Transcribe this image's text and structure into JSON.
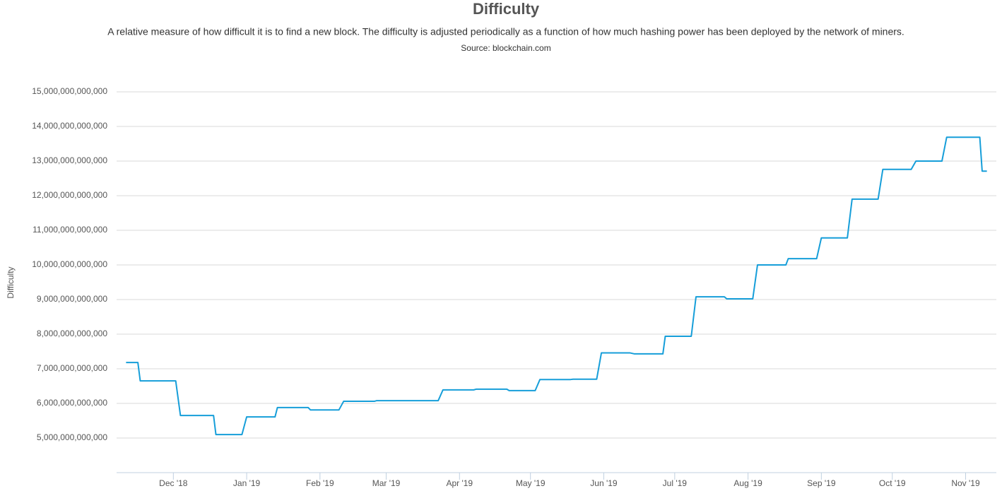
{
  "chart_data": {
    "type": "line",
    "title": "Difficulty",
    "subtitle": "A relative measure of how difficult it is to find a new block. The difficulty is adjusted periodically as a function of how much hashing power has been deployed by the network of miners.",
    "source": "Source: blockchain.com",
    "y_label": "Difficulty",
    "grid": true,
    "xlim": [
      "2018-11-07",
      "2019-11-14"
    ],
    "xticks": [
      {
        "value": "2018-12-01",
        "label": "Dec '18"
      },
      {
        "value": "2019-01-01",
        "label": "Jan '19"
      },
      {
        "value": "2019-02-01",
        "label": "Feb '19"
      },
      {
        "value": "2019-03-01",
        "label": "Mar '19"
      },
      {
        "value": "2019-04-01",
        "label": "Apr '19"
      },
      {
        "value": "2019-05-01",
        "label": "May '19"
      },
      {
        "value": "2019-06-01",
        "label": "Jun '19"
      },
      {
        "value": "2019-07-01",
        "label": "Jul '19"
      },
      {
        "value": "2019-08-01",
        "label": "Aug '19"
      },
      {
        "value": "2019-09-01",
        "label": "Sep '19"
      },
      {
        "value": "2019-10-01",
        "label": "Oct '19"
      },
      {
        "value": "2019-11-01",
        "label": "Nov '19"
      }
    ],
    "ylim": [
      4000000000000,
      15000000000000
    ],
    "yticks": [
      {
        "value": 5000000000000,
        "label": "5,000,000,000,000"
      },
      {
        "value": 6000000000000,
        "label": "6,000,000,000,000"
      },
      {
        "value": 7000000000000,
        "label": "7,000,000,000,000"
      },
      {
        "value": 8000000000000,
        "label": "8,000,000,000,000"
      },
      {
        "value": 9000000000000,
        "label": "9,000,000,000,000"
      },
      {
        "value": 10000000000000,
        "label": "10,000,000,000,000"
      },
      {
        "value": 11000000000000,
        "label": "11,000,000,000,000"
      },
      {
        "value": 12000000000000,
        "label": "12,000,000,000,000"
      },
      {
        "value": 13000000000000,
        "label": "13,000,000,000,000"
      },
      {
        "value": 14000000000000,
        "label": "14,000,000,000,000"
      },
      {
        "value": 15000000000000,
        "label": "15,000,000,000,000"
      }
    ],
    "series": [
      {
        "name": "Difficulty",
        "color": "#169ed9",
        "x": [
          "2018-11-11",
          "2018-11-16",
          "2018-11-17",
          "2018-12-02",
          "2018-12-04",
          "2018-12-18",
          "2018-12-19",
          "2018-12-30",
          "2019-01-01",
          "2019-01-13",
          "2019-01-14",
          "2019-01-27",
          "2019-01-28",
          "2019-02-09",
          "2019-02-11",
          "2019-02-24",
          "2019-02-25",
          "2019-03-23",
          "2019-03-25",
          "2019-04-07",
          "2019-04-08",
          "2019-04-21",
          "2019-04-22",
          "2019-05-03",
          "2019-05-05",
          "2019-05-18",
          "2019-05-19",
          "2019-05-29",
          "2019-05-31",
          "2019-06-12",
          "2019-06-14",
          "2019-06-26",
          "2019-06-27",
          "2019-07-08",
          "2019-07-10",
          "2019-07-22",
          "2019-07-23",
          "2019-08-03",
          "2019-08-05",
          "2019-08-17",
          "2019-08-18",
          "2019-08-30",
          "2019-09-01",
          "2019-09-12",
          "2019-09-14",
          "2019-09-25",
          "2019-09-27",
          "2019-10-09",
          "2019-10-11",
          "2019-10-22",
          "2019-10-24",
          "2019-11-07",
          "2019-11-08",
          "2019-11-10"
        ],
        "values": [
          7180000000000,
          7180000000000,
          6650000000000,
          6650000000000,
          5650000000000,
          5650000000000,
          5100000000000,
          5100000000000,
          5610000000000,
          5610000000000,
          5880000000000,
          5880000000000,
          5810000000000,
          5810000000000,
          6060000000000,
          6060000000000,
          6080000000000,
          6080000000000,
          6390000000000,
          6390000000000,
          6410000000000,
          6410000000000,
          6370000000000,
          6370000000000,
          6690000000000,
          6690000000000,
          6700000000000,
          6700000000000,
          7460000000000,
          7460000000000,
          7430000000000,
          7430000000000,
          7940000000000,
          7940000000000,
          9080000000000,
          9080000000000,
          9020000000000,
          9020000000000,
          10000000000000,
          10000000000000,
          10180000000000,
          10180000000000,
          10780000000000,
          10780000000000,
          11900000000000,
          11900000000000,
          12760000000000,
          12760000000000,
          13000000000000,
          13000000000000,
          13690000000000,
          13690000000000,
          12710000000000,
          12710000000000
        ]
      }
    ]
  }
}
